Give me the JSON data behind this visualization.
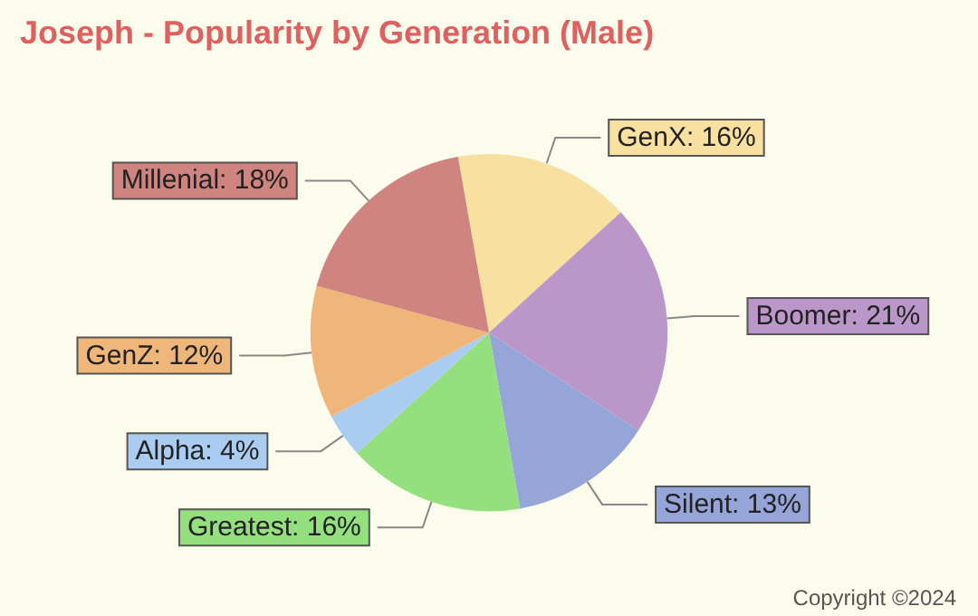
{
  "chart_data": {
    "type": "pie",
    "title": "Joseph - Popularity by Generation (Male)",
    "categories": [
      "GenX",
      "Boomer",
      "Silent",
      "Greatest",
      "Alpha",
      "GenZ",
      "Millenial"
    ],
    "values": [
      16,
      21,
      13,
      16,
      4,
      12,
      18
    ],
    "value_labels": [
      "16%",
      "21%",
      "13%",
      "16%",
      "4%",
      "12%",
      "18%"
    ],
    "colors": [
      "#f7e0a0",
      "#bb97c9",
      "#95a5d8",
      "#94e07f",
      "#a9ccf0",
      "#efb67a",
      "#cf847f"
    ],
    "legend": false,
    "annotations": [
      "Copyright ©2024"
    ]
  }
}
